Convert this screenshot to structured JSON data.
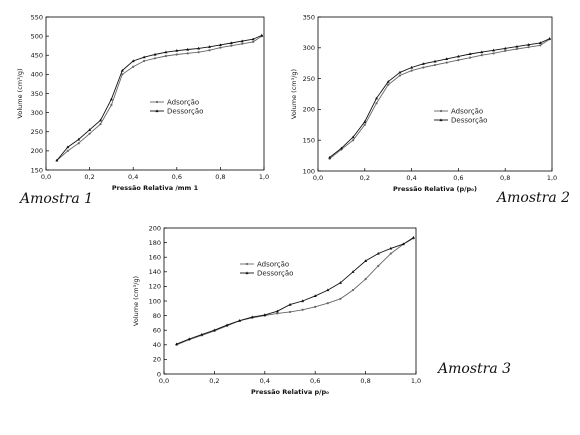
{
  "chart_data": [
    {
      "type": "line",
      "caption": "Amostra 1",
      "xlabel": "Pressão Relativa /mm 1",
      "ylabel": "Volume (cm³/g)",
      "xlim": [
        0.0,
        1.0
      ],
      "ylim": [
        150,
        550
      ],
      "xticks": [
        0.0,
        0.2,
        0.4,
        0.6,
        0.8,
        1.0
      ],
      "xtick_labels": [
        "0,0",
        "0,2",
        "0,4",
        "0,6",
        "0,8",
        "1,0"
      ],
      "yticks": [
        150,
        200,
        250,
        300,
        350,
        400,
        450,
        500,
        550
      ],
      "legend_position": "center-right",
      "series": [
        {
          "name": "Adsorção",
          "marker": "dot",
          "x": [
            0.05,
            0.1,
            0.15,
            0.2,
            0.25,
            0.3,
            0.35,
            0.4,
            0.45,
            0.5,
            0.55,
            0.6,
            0.65,
            0.7,
            0.75,
            0.8,
            0.85,
            0.9,
            0.95,
            0.99
          ],
          "y": [
            175,
            200,
            220,
            245,
            270,
            320,
            400,
            420,
            435,
            442,
            448,
            452,
            455,
            458,
            463,
            470,
            475,
            480,
            485,
            500
          ]
        },
        {
          "name": "Dessorção",
          "marker": "triangle",
          "x": [
            0.05,
            0.1,
            0.15,
            0.2,
            0.25,
            0.3,
            0.35,
            0.4,
            0.45,
            0.5,
            0.55,
            0.6,
            0.65,
            0.7,
            0.75,
            0.8,
            0.85,
            0.9,
            0.95,
            0.99
          ],
          "y": [
            175,
            210,
            230,
            255,
            280,
            335,
            410,
            435,
            445,
            452,
            458,
            462,
            465,
            468,
            472,
            477,
            482,
            487,
            492,
            502
          ]
        }
      ]
    },
    {
      "type": "line",
      "caption": "Amostra 2",
      "xlabel": "Pressão Relativa (p/p₀)",
      "ylabel": "Volume (cm³/g)",
      "xlim": [
        0.0,
        1.0
      ],
      "ylim": [
        100,
        350
      ],
      "xticks": [
        0.0,
        0.2,
        0.4,
        0.6,
        0.8,
        1.0
      ],
      "xtick_labels": [
        "0,0",
        "0,2",
        "0,4",
        "0,6",
        "0,8",
        "1,0"
      ],
      "yticks": [
        100,
        150,
        200,
        250,
        300,
        350
      ],
      "legend_position": "lower-right",
      "series": [
        {
          "name": "Adsorção",
          "marker": "dot",
          "x": [
            0.05,
            0.1,
            0.15,
            0.2,
            0.25,
            0.3,
            0.35,
            0.4,
            0.45,
            0.5,
            0.55,
            0.6,
            0.65,
            0.7,
            0.75,
            0.8,
            0.85,
            0.9,
            0.95,
            0.99
          ],
          "y": [
            120,
            135,
            150,
            175,
            210,
            240,
            255,
            263,
            268,
            272,
            276,
            280,
            284,
            288,
            291,
            295,
            298,
            301,
            304,
            314
          ]
        },
        {
          "name": "Dessorção",
          "marker": "triangle",
          "x": [
            0.05,
            0.1,
            0.15,
            0.2,
            0.25,
            0.3,
            0.35,
            0.4,
            0.45,
            0.5,
            0.55,
            0.6,
            0.65,
            0.7,
            0.75,
            0.8,
            0.85,
            0.9,
            0.95,
            0.99
          ],
          "y": [
            122,
            137,
            155,
            180,
            218,
            245,
            260,
            268,
            274,
            278,
            282,
            286,
            290,
            293,
            296,
            299,
            302,
            305,
            308,
            315
          ]
        }
      ]
    },
    {
      "type": "line",
      "caption": "Amostra 3",
      "xlabel": "Pressão Relativa p/p₀",
      "ylabel": "Volume (cm³/g)",
      "xlim": [
        0.0,
        1.0
      ],
      "ylim": [
        0,
        200
      ],
      "xticks": [
        0.0,
        0.2,
        0.4,
        0.6,
        0.8,
        1.0
      ],
      "xtick_labels": [
        "0,0",
        "0,2",
        "0,4",
        "0,6",
        "0,8",
        "1,0"
      ],
      "yticks": [
        0,
        20,
        40,
        60,
        80,
        100,
        120,
        140,
        160,
        180,
        200
      ],
      "legend_position": "top-left",
      "series": [
        {
          "name": "Adsorção",
          "marker": "dot",
          "x": [
            0.05,
            0.1,
            0.15,
            0.2,
            0.25,
            0.3,
            0.35,
            0.4,
            0.45,
            0.5,
            0.55,
            0.6,
            0.65,
            0.7,
            0.75,
            0.8,
            0.85,
            0.9,
            0.95,
            0.99
          ],
          "y": [
            40,
            47,
            53,
            59,
            66,
            73,
            77,
            80,
            83,
            85,
            88,
            92,
            97,
            103,
            115,
            130,
            148,
            165,
            178,
            186
          ]
        },
        {
          "name": "Dessorção",
          "marker": "triangle",
          "x": [
            0.05,
            0.1,
            0.15,
            0.2,
            0.25,
            0.3,
            0.35,
            0.4,
            0.45,
            0.5,
            0.55,
            0.6,
            0.65,
            0.7,
            0.75,
            0.8,
            0.85,
            0.9,
            0.95,
            0.99
          ],
          "y": [
            41,
            48,
            54,
            60,
            67,
            73,
            78,
            81,
            86,
            95,
            100,
            107,
            115,
            125,
            140,
            155,
            165,
            172,
            178,
            187
          ]
        }
      ]
    }
  ]
}
